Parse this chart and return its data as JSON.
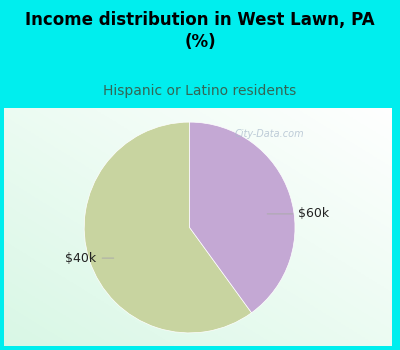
{
  "title": "Income distribution in West Lawn, PA\n(%)",
  "subtitle": "Hispanic or Latino residents",
  "slices": [
    60.0,
    40.0
  ],
  "labels": [
    "$40k",
    "$60k"
  ],
  "colors": [
    "#c8d4a0",
    "#c4a8d4"
  ],
  "background_color": "#00eeee",
  "title_fontsize": 12,
  "subtitle_fontsize": 10,
  "subtitle_color": "#336655",
  "label_fontsize": 9,
  "startangle": 90,
  "watermark": "City-Data.com",
  "watermark_color": "#aabbcc",
  "label_color": "#222222"
}
